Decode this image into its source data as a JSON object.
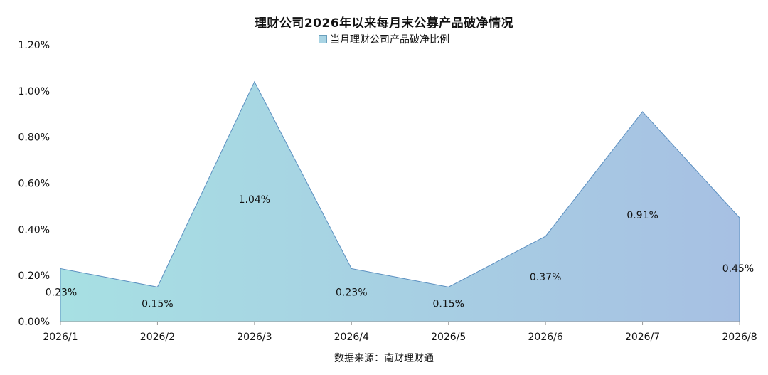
{
  "chart_data": {
    "type": "area",
    "title": "理财公司2026年以来每月末公募产品破净情况",
    "categories": [
      "2026/1",
      "2026/2",
      "2026/3",
      "2026/4",
      "2026/5",
      "2026/6",
      "2026/7",
      "2026/8"
    ],
    "series": [
      {
        "name": "当月理财公司产品破净比例",
        "values": [
          0.23,
          0.15,
          1.04,
          0.23,
          0.15,
          0.37,
          0.91,
          0.45
        ],
        "labels": [
          "0.23%",
          "0.15%",
          "1.04%",
          "0.23%",
          "0.15%",
          "0.37%",
          "0.91%",
          "0.45%"
        ]
      }
    ],
    "ylim": [
      0,
      1.2
    ],
    "yticks": [
      "0.00%",
      "0.20%",
      "0.40%",
      "0.60%",
      "0.80%",
      "1.00%",
      "1.20%"
    ],
    "xlabel": "",
    "ylabel": "",
    "grid": false,
    "legend_position": "top",
    "gradient_colors": [
      "#a7e0e3",
      "#a7c0e3"
    ],
    "line_color": "#5b8fc0"
  },
  "source": "数据来源：南财理财通"
}
